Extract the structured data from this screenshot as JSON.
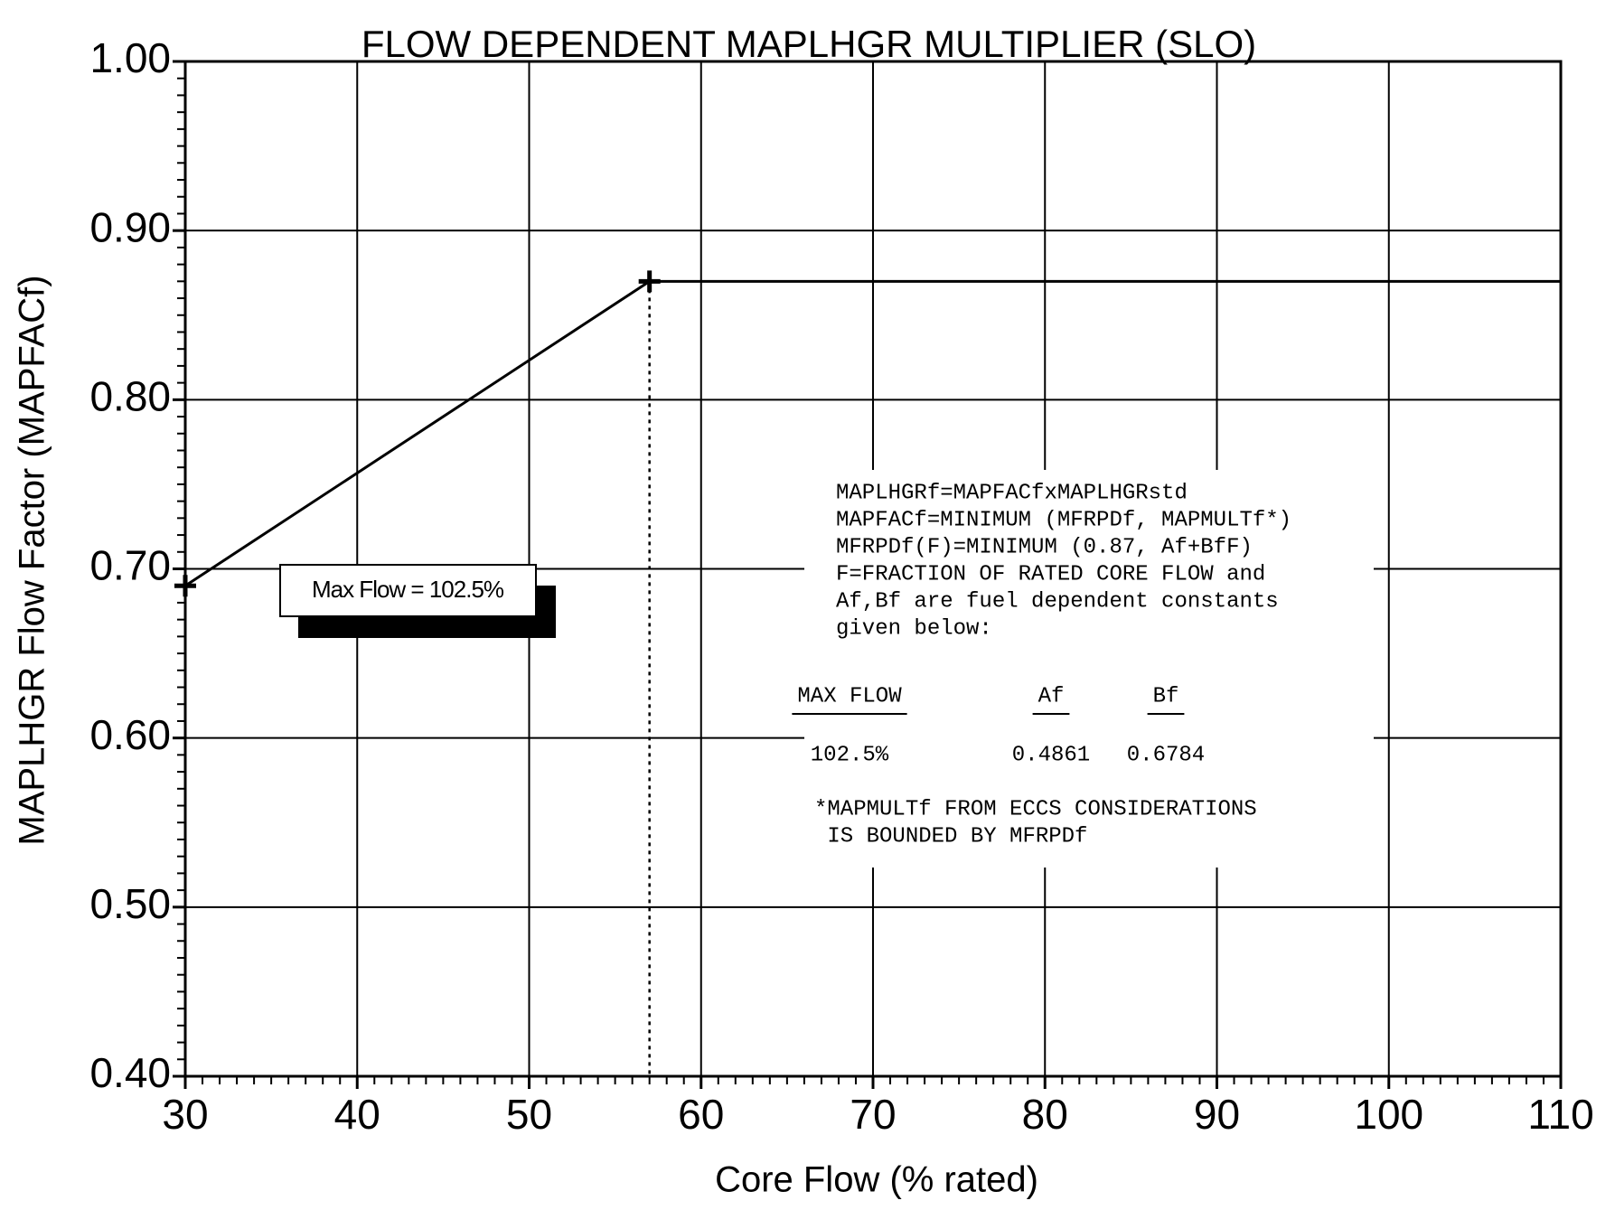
{
  "chart_data": {
    "type": "line",
    "title": "FLOW DEPENDENT MAPLHGR MULTIPLIER (SLO)",
    "x_label": "Core Flow (% rated)",
    "y_label": "MAPLHGR Flow Factor (MAPFACf)",
    "x": [
      30,
      57,
      110
    ],
    "series": [
      {
        "color": "#000000",
        "values": [
          0.69,
          0.87,
          0.87
        ]
      }
    ],
    "markers": [
      0,
      1
    ],
    "xlim": [
      30,
      110
    ],
    "ylim": [
      0.4,
      1.0
    ],
    "xticks": [
      30,
      40,
      50,
      60,
      70,
      80,
      90,
      100,
      110
    ],
    "yticks": [
      {
        "value": 0.4,
        "label": "0.40"
      },
      {
        "value": 0.5,
        "label": "0.50"
      },
      {
        "value": 0.6,
        "label": "0.60"
      },
      {
        "value": 0.7,
        "label": "0.70"
      },
      {
        "value": 0.8,
        "label": "0.80"
      },
      {
        "value": 0.9,
        "label": "0.90"
      },
      {
        "value": 1.0,
        "label": "1.00"
      }
    ],
    "grid": true,
    "minor_divisions": 10,
    "callout": "Max Flow = 102.5%",
    "notes": [
      "MAPLHGRf=MAPFACfxMAPLHGRstd",
      "MAPFACf=MINIMUM (MFRPDf, MAPMULTf*)",
      "MFRPDf(F)=MINIMUM (0.87, Af+BfF)",
      "F=FRACTION OF RATED CORE FLOW and",
      "Af,Bf are fuel dependent constants",
      "given below:"
    ],
    "table": {
      "headers": [
        "MAX FLOW",
        "Af",
        "Bf"
      ],
      "row": [
        "102.5%",
        "0.4861",
        "0.6784"
      ]
    },
    "footnote": [
      "*MAPMULTf FROM ECCS CONSIDERATIONS",
      " IS BOUNDED BY MFRPDf"
    ]
  }
}
